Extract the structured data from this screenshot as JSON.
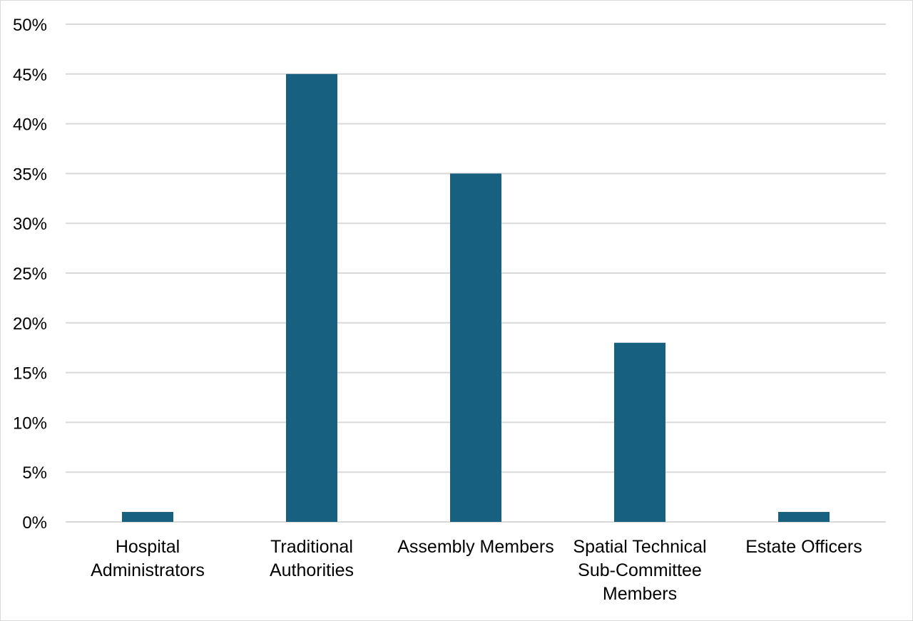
{
  "chart_data": {
    "type": "bar",
    "title": "",
    "xlabel": "",
    "ylabel": "",
    "categories": [
      [
        "Hospital",
        "Administrators"
      ],
      [
        "Traditional",
        "Authorities"
      ],
      [
        "Assembly Members"
      ],
      [
        "Spatial Technical",
        "Sub-Committee",
        "Members"
      ],
      [
        "Estate Officers"
      ]
    ],
    "values": [
      1,
      45,
      35,
      18,
      1
    ],
    "ylim": [
      0,
      50
    ],
    "ytick_values": [
      0,
      5,
      10,
      15,
      20,
      25,
      30,
      35,
      40,
      45,
      50
    ],
    "ytick_labels": [
      "0%",
      "5%",
      "10%",
      "15%",
      "20%",
      "25%",
      "30%",
      "35%",
      "40%",
      "45%",
      "50%"
    ],
    "grid": true,
    "legend": "none",
    "colors": {
      "bar": "#17607f",
      "grid": "#d9d9d9",
      "border": "#d9d9d9"
    }
  }
}
